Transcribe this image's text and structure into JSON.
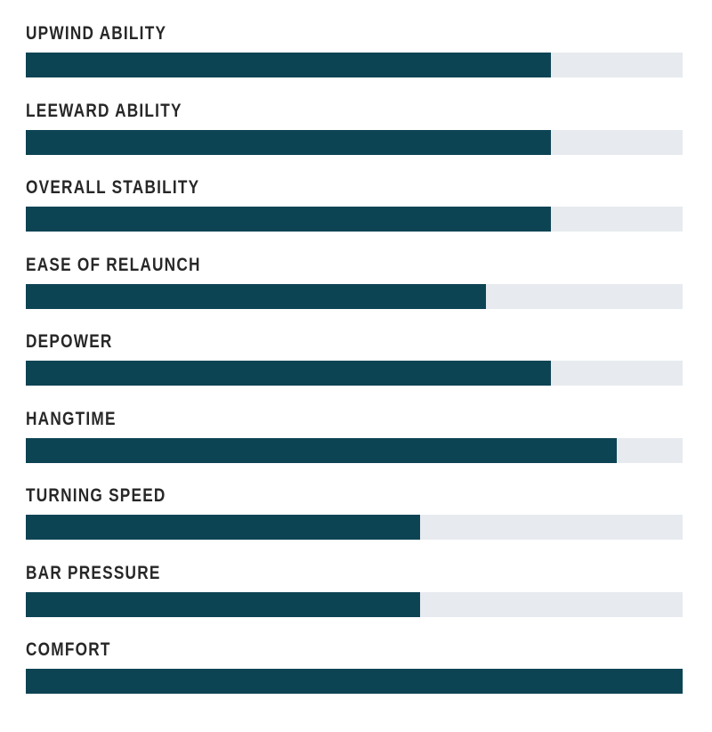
{
  "page": {
    "background": "#ffffff"
  },
  "chart_data": {
    "type": "bar",
    "orientation": "horizontal",
    "title": "",
    "xlabel": "",
    "ylabel": "",
    "grid": false,
    "legend": false,
    "categories": [
      "UPWIND ABILITY",
      "LEEWARD ABILITY",
      "OVERALL STABILITY",
      "EASE OF RELAUNCH",
      "DEPOWER",
      "HANGTIME",
      "TURNING SPEED",
      "BAR PRESSURE",
      "COMFORT"
    ],
    "values": [
      8,
      8,
      8,
      7,
      8,
      9,
      6,
      6,
      10
    ],
    "max": 10,
    "colors": {
      "fill": "#0d4454",
      "track": "#e7eaef",
      "label": "#272727"
    }
  }
}
